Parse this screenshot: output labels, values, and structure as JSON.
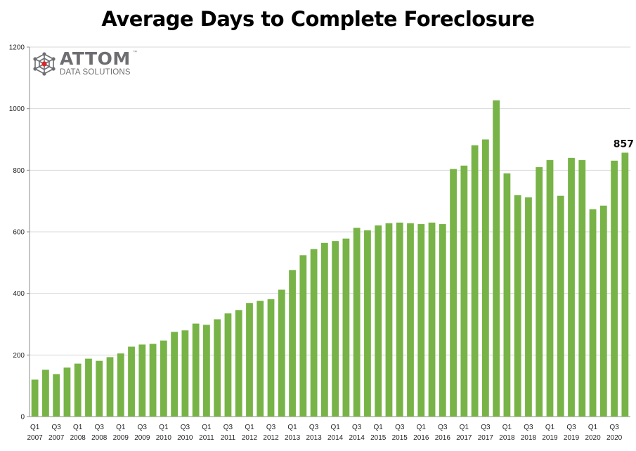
{
  "title": "Average Days to Complete Foreclosure",
  "logo": {
    "word": "ATTOM",
    "tm": "™",
    "subtitle": "DATA SOLUTIONS"
  },
  "chart_data": {
    "type": "bar",
    "title": "Average Days to Complete Foreclosure",
    "xlabel": "",
    "ylabel": "",
    "ylim": [
      0,
      1200
    ],
    "yticks": [
      0,
      200,
      400,
      600,
      800,
      1000,
      1200
    ],
    "grid": true,
    "bar_color": "#77b346",
    "categories": [
      "Q1 2007",
      "Q2 2007",
      "Q3 2007",
      "Q4 2007",
      "Q1 2008",
      "Q2 2008",
      "Q3 2008",
      "Q4 2008",
      "Q1 2009",
      "Q2 2009",
      "Q3 2009",
      "Q4 2009",
      "Q1 2010",
      "Q2 2010",
      "Q3 2010",
      "Q4 2010",
      "Q1 2011",
      "Q2 2011",
      "Q3 2011",
      "Q4 2011",
      "Q1 2012",
      "Q2 2012",
      "Q3 2012",
      "Q4 2012",
      "Q1 2013",
      "Q2 2013",
      "Q3 2013",
      "Q4 2013",
      "Q1 2014",
      "Q2 2014",
      "Q3 2014",
      "Q4 2014",
      "Q1 2015",
      "Q2 2015",
      "Q3 2015",
      "Q4 2015",
      "Q1 2016",
      "Q2 2016",
      "Q3 2016",
      "Q4 2016",
      "Q1 2017",
      "Q2 2017",
      "Q3 2017",
      "Q4 2017",
      "Q1 2018",
      "Q2 2018",
      "Q3 2018",
      "Q4 2018",
      "Q1 2019",
      "Q2 2019",
      "Q3 2019",
      "Q4 2019",
      "Q1 2020",
      "Q2 2020",
      "Q3 2020",
      "Q4 2020"
    ],
    "values": [
      120,
      152,
      138,
      159,
      172,
      188,
      181,
      193,
      205,
      227,
      234,
      236,
      247,
      275,
      280,
      302,
      298,
      316,
      335,
      346,
      369,
      376,
      381,
      412,
      476,
      524,
      544,
      564,
      570,
      578,
      613,
      605,
      621,
      628,
      630,
      628,
      625,
      630,
      625,
      804,
      815,
      881,
      900,
      1027,
      790,
      719,
      712,
      810,
      833,
      717,
      840,
      833,
      673,
      685,
      831,
      857
    ],
    "x_tick_labels": [
      {
        "index": 0,
        "quarter": "Q1",
        "year": "2007"
      },
      {
        "index": 2,
        "quarter": "Q3",
        "year": "2007"
      },
      {
        "index": 4,
        "quarter": "Q1",
        "year": "2008"
      },
      {
        "index": 6,
        "quarter": "Q3",
        "year": "2008"
      },
      {
        "index": 8,
        "quarter": "Q1",
        "year": "2009"
      },
      {
        "index": 10,
        "quarter": "Q3",
        "year": "2009"
      },
      {
        "index": 12,
        "quarter": "Q1",
        "year": "2010"
      },
      {
        "index": 14,
        "quarter": "Q3",
        "year": "2010"
      },
      {
        "index": 16,
        "quarter": "Q1",
        "year": "2011"
      },
      {
        "index": 18,
        "quarter": "Q3",
        "year": "2011"
      },
      {
        "index": 20,
        "quarter": "Q1",
        "year": "2012"
      },
      {
        "index": 22,
        "quarter": "Q3",
        "year": "2012"
      },
      {
        "index": 24,
        "quarter": "Q1",
        "year": "2013"
      },
      {
        "index": 26,
        "quarter": "Q3",
        "year": "2013"
      },
      {
        "index": 28,
        "quarter": "Q1",
        "year": "2014"
      },
      {
        "index": 30,
        "quarter": "Q3",
        "year": "2014"
      },
      {
        "index": 32,
        "quarter": "Q1",
        "year": "2015"
      },
      {
        "index": 34,
        "quarter": "Q3",
        "year": "2015"
      },
      {
        "index": 36,
        "quarter": "Q1",
        "year": "2016"
      },
      {
        "index": 38,
        "quarter": "Q3",
        "year": "2016"
      },
      {
        "index": 40,
        "quarter": "Q1",
        "year": "2017"
      },
      {
        "index": 42,
        "quarter": "Q3",
        "year": "2017"
      },
      {
        "index": 44,
        "quarter": "Q1",
        "year": "2018"
      },
      {
        "index": 46,
        "quarter": "Q3",
        "year": "2018"
      },
      {
        "index": 48,
        "quarter": "Q1",
        "year": "2019"
      },
      {
        "index": 50,
        "quarter": "Q3",
        "year": "2019"
      },
      {
        "index": 52,
        "quarter": "Q1",
        "year": "2020"
      },
      {
        "index": 54,
        "quarter": "Q3",
        "year": "2020"
      }
    ],
    "data_labels": [
      {
        "index": 55,
        "text": "857"
      }
    ]
  }
}
